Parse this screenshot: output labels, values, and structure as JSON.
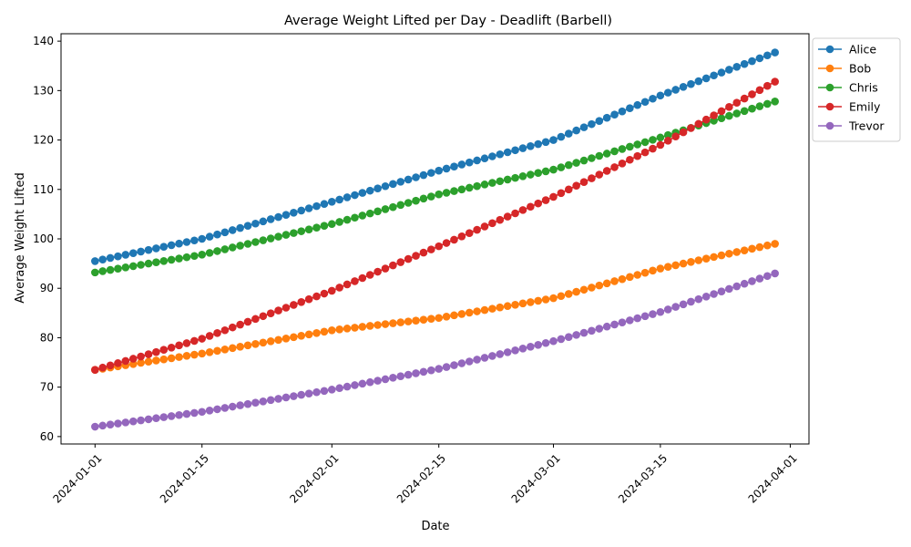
{
  "chart_data": {
    "type": "line",
    "title": "Average Weight Lifted per Day - Deadlift (Barbell)",
    "xlabel": "Date",
    "ylabel": "Average Weight Lifted",
    "x_range": [
      "2024-01-01",
      "2024-03-30"
    ],
    "x_ticks": [
      "2024-01-01",
      "2024-01-15",
      "2024-02-01",
      "2024-02-15",
      "2024-03-01",
      "2024-03-15",
      "2024-04-01"
    ],
    "ylim": [
      58.5,
      141.5
    ],
    "y_ticks": [
      60,
      70,
      80,
      90,
      100,
      110,
      120,
      130,
      140
    ],
    "grid": false,
    "legend_position": "outside-top-right",
    "marker": "circle",
    "series": [
      {
        "name": "Alice",
        "color": "#1f77b4",
        "knots": [
          [
            "2024-01-01",
            95.5
          ],
          [
            "2024-01-15",
            100.0
          ],
          [
            "2024-02-01",
            107.5
          ],
          [
            "2024-02-15",
            113.8
          ],
          [
            "2024-03-01",
            120.0
          ],
          [
            "2024-03-15",
            129.0
          ],
          [
            "2024-03-30",
            137.7
          ]
        ]
      },
      {
        "name": "Bob",
        "color": "#ff7f0e",
        "knots": [
          [
            "2024-01-01",
            73.5
          ],
          [
            "2024-01-15",
            76.8
          ],
          [
            "2024-02-01",
            81.5
          ],
          [
            "2024-02-15",
            84.0
          ],
          [
            "2024-03-01",
            88.0
          ],
          [
            "2024-03-15",
            94.0
          ],
          [
            "2024-03-30",
            99.0
          ]
        ]
      },
      {
        "name": "Chris",
        "color": "#2ca02c",
        "knots": [
          [
            "2024-01-01",
            93.2
          ],
          [
            "2024-01-15",
            96.8
          ],
          [
            "2024-02-01",
            103.0
          ],
          [
            "2024-02-15",
            109.0
          ],
          [
            "2024-03-01",
            114.0
          ],
          [
            "2024-03-15",
            120.5
          ],
          [
            "2024-03-30",
            127.8
          ]
        ]
      },
      {
        "name": "Emily",
        "color": "#d62728",
        "knots": [
          [
            "2024-01-01",
            73.5
          ],
          [
            "2024-01-15",
            79.8
          ],
          [
            "2024-02-01",
            89.5
          ],
          [
            "2024-02-15",
            98.5
          ],
          [
            "2024-03-01",
            108.5
          ],
          [
            "2024-03-15",
            119.0
          ],
          [
            "2024-03-30",
            131.8
          ]
        ]
      },
      {
        "name": "Trevor",
        "color": "#9467bd",
        "knots": [
          [
            "2024-01-01",
            62.0
          ],
          [
            "2024-01-15",
            65.0
          ],
          [
            "2024-02-01",
            69.5
          ],
          [
            "2024-02-15",
            73.7
          ],
          [
            "2024-03-01",
            79.3
          ],
          [
            "2024-03-15",
            85.2
          ],
          [
            "2024-03-30",
            93.0
          ]
        ]
      }
    ]
  }
}
